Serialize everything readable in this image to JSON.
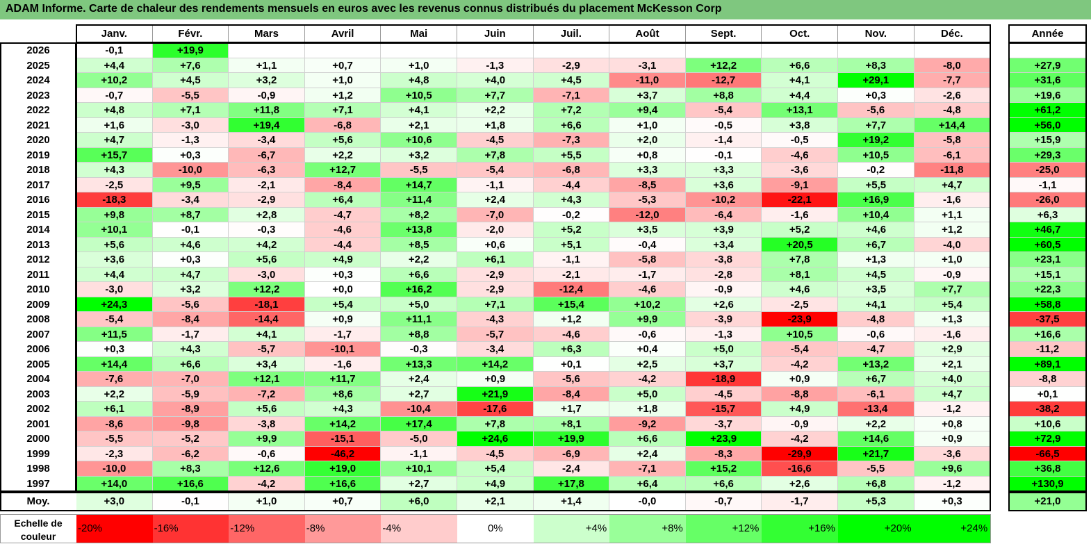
{
  "title": "ADAM Informe. Carte de chaleur des rendements mensuels en euros avec les revenus connus distribués du placement McKesson Corp",
  "chart_data": {
    "type": "heatmap",
    "title": "ADAM Informe. Carte de chaleur des rendements mensuels en euros avec les revenus connus distribués du placement McKesson Corp",
    "months": [
      "Janv.",
      "Févr.",
      "Mars",
      "Avril",
      "Mai",
      "Juin",
      "Juil.",
      "Août",
      "Sept.",
      "Oct.",
      "Nov.",
      "Déc."
    ],
    "year_header": "Année",
    "rows": [
      {
        "year": "2026",
        "months": [
          "-0,1",
          "+19,9",
          "",
          "",
          "",
          "",
          "",
          "",
          "",
          "",
          "",
          ""
        ],
        "annual": ""
      },
      {
        "year": "2025",
        "months": [
          "+4,4",
          "+7,6",
          "+1,1",
          "+0,7",
          "+1,0",
          "-1,3",
          "-2,9",
          "-3,1",
          "+12,2",
          "+6,6",
          "+8,3",
          "-8,0"
        ],
        "annual": "+27,9"
      },
      {
        "year": "2024",
        "months": [
          "+10,2",
          "+4,5",
          "+3,2",
          "+1,0",
          "+4,8",
          "+4,0",
          "+4,5",
          "-11,0",
          "-12,7",
          "+4,1",
          "+29,1",
          "-7,7"
        ],
        "annual": "+31,6"
      },
      {
        "year": "2023",
        "months": [
          "-0,7",
          "-5,5",
          "-0,9",
          "+1,2",
          "+10,5",
          "+7,7",
          "-7,1",
          "+3,7",
          "+8,8",
          "+4,4",
          "+0,3",
          "-2,6"
        ],
        "annual": "+19,6"
      },
      {
        "year": "2022",
        "months": [
          "+4,8",
          "+7,1",
          "+11,8",
          "+7,1",
          "+4,1",
          "+2,2",
          "+7,2",
          "+9,4",
          "-5,4",
          "+13,1",
          "-5,6",
          "-4,8"
        ],
        "annual": "+61,2"
      },
      {
        "year": "2021",
        "months": [
          "+1,6",
          "-3,0",
          "+19,4",
          "-6,8",
          "+2,1",
          "+1,8",
          "+6,6",
          "+1,0",
          "-0,5",
          "+3,8",
          "+7,7",
          "+14,4"
        ],
        "annual": "+56,0"
      },
      {
        "year": "2020",
        "months": [
          "+4,7",
          "-1,3",
          "-3,4",
          "+5,6",
          "+10,6",
          "-4,5",
          "-7,3",
          "+2,0",
          "-1,4",
          "-0,5",
          "+19,2",
          "-5,8"
        ],
        "annual": "+15,9"
      },
      {
        "year": "2019",
        "months": [
          "+15,7",
          "+0,3",
          "-6,7",
          "+2,2",
          "+3,2",
          "+7,8",
          "+5,5",
          "+0,8",
          "-0,1",
          "-4,6",
          "+10,5",
          "-6,1"
        ],
        "annual": "+29,3"
      },
      {
        "year": "2018",
        "months": [
          "+4,3",
          "-10,0",
          "-6,3",
          "+12,7",
          "-5,5",
          "-5,4",
          "-6,8",
          "+3,3",
          "+3,3",
          "-3,6",
          "-0,2",
          "-11,8"
        ],
        "annual": "-25,0"
      },
      {
        "year": "2017",
        "months": [
          "-2,5",
          "+9,5",
          "-2,1",
          "-8,4",
          "+14,7",
          "-1,1",
          "-4,4",
          "-8,5",
          "+3,6",
          "-9,1",
          "+5,5",
          "+4,7"
        ],
        "annual": "-1,1"
      },
      {
        "year": "2016",
        "months": [
          "-18,3",
          "-3,4",
          "-2,9",
          "+6,4",
          "+11,4",
          "+2,4",
          "+4,3",
          "-5,3",
          "-10,2",
          "-22,1",
          "+16,9",
          "-1,6"
        ],
        "annual": "-26,0"
      },
      {
        "year": "2015",
        "months": [
          "+9,8",
          "+8,7",
          "+2,8",
          "-4,7",
          "+8,2",
          "-7,0",
          "-0,2",
          "-12,0",
          "-6,4",
          "-1,6",
          "+10,4",
          "+1,1"
        ],
        "annual": "+6,3"
      },
      {
        "year": "2014",
        "months": [
          "+10,1",
          "-0,1",
          "-0,3",
          "-4,6",
          "+13,8",
          "-2,0",
          "+5,2",
          "+3,5",
          "+3,9",
          "+5,2",
          "+4,6",
          "+1,2"
        ],
        "annual": "+46,7"
      },
      {
        "year": "2013",
        "months": [
          "+5,6",
          "+4,6",
          "+4,2",
          "-4,4",
          "+8,5",
          "+0,6",
          "+5,1",
          "-0,4",
          "+3,4",
          "+20,5",
          "+6,7",
          "-4,0"
        ],
        "annual": "+60,5"
      },
      {
        "year": "2012",
        "months": [
          "+3,6",
          "+0,3",
          "+5,6",
          "+4,9",
          "+2,2",
          "+6,1",
          "-1,1",
          "-5,8",
          "-3,8",
          "+7,8",
          "+1,3",
          "+1,0"
        ],
        "annual": "+23,1"
      },
      {
        "year": "2011",
        "months": [
          "+4,4",
          "+4,7",
          "-3,0",
          "+0,3",
          "+6,6",
          "-2,9",
          "-2,1",
          "-1,7",
          "-2,8",
          "+8,1",
          "+4,5",
          "-0,9"
        ],
        "annual": "+15,1"
      },
      {
        "year": "2010",
        "months": [
          "-3,0",
          "+3,2",
          "+12,2",
          "+0,0",
          "+16,2",
          "-2,9",
          "-12,4",
          "-4,6",
          "-0,9",
          "+4,6",
          "+3,5",
          "+7,7"
        ],
        "annual": "+22,3"
      },
      {
        "year": "2009",
        "months": [
          "+24,3",
          "-5,6",
          "-18,1",
          "+5,4",
          "+5,0",
          "+7,1",
          "+15,4",
          "+10,2",
          "+2,6",
          "-2,5",
          "+4,1",
          "+5,4"
        ],
        "annual": "+58,8"
      },
      {
        "year": "2008",
        "months": [
          "-5,4",
          "-8,4",
          "-14,4",
          "+0,9",
          "+11,1",
          "-4,3",
          "+1,2",
          "+9,9",
          "-3,9",
          "-23,9",
          "-4,8",
          "+1,3"
        ],
        "annual": "-37,5"
      },
      {
        "year": "2007",
        "months": [
          "+11,5",
          "-1,7",
          "+4,1",
          "-1,7",
          "+8,8",
          "-5,7",
          "-4,6",
          "-0,6",
          "-1,3",
          "+10,5",
          "-0,6",
          "-1,6"
        ],
        "annual": "+16,6"
      },
      {
        "year": "2006",
        "months": [
          "+0,3",
          "+4,3",
          "-5,7",
          "-10,1",
          "-0,3",
          "-3,4",
          "+6,3",
          "+0,4",
          "+5,0",
          "-5,4",
          "-4,7",
          "+2,9"
        ],
        "annual": "-11,2"
      },
      {
        "year": "2005",
        "months": [
          "+14,4",
          "+6,6",
          "+3,4",
          "-1,6",
          "+13,3",
          "+14,2",
          "+0,1",
          "+2,5",
          "+3,7",
          "-4,2",
          "+13,2",
          "+2,1"
        ],
        "annual": "+89,1"
      },
      {
        "year": "2004",
        "months": [
          "-7,6",
          "-7,0",
          "+12,1",
          "+11,7",
          "+2,4",
          "+0,9",
          "-5,6",
          "-4,2",
          "-18,9",
          "+0,9",
          "+6,7",
          "+4,0"
        ],
        "annual": "-8,8"
      },
      {
        "year": "2003",
        "months": [
          "+2,2",
          "-5,9",
          "-7,2",
          "+8,6",
          "+2,7",
          "+21,9",
          "-8,4",
          "+5,0",
          "-4,5",
          "-8,8",
          "-6,1",
          "+4,7"
        ],
        "annual": "+0,1"
      },
      {
        "year": "2002",
        "months": [
          "+6,1",
          "-8,9",
          "+5,6",
          "+4,3",
          "-10,4",
          "-17,6",
          "+1,7",
          "+1,8",
          "-15,7",
          "+4,9",
          "-13,4",
          "-1,2"
        ],
        "annual": "-38,2"
      },
      {
        "year": "2001",
        "months": [
          "-8,6",
          "-9,8",
          "-3,8",
          "+14,2",
          "+17,4",
          "+7,8",
          "+8,1",
          "-9,2",
          "-3,7",
          "-0,9",
          "+2,2",
          "+0,8"
        ],
        "annual": "+10,6"
      },
      {
        "year": "2000",
        "months": [
          "-5,5",
          "-5,2",
          "+9,9",
          "-15,1",
          "-5,0",
          "+24,6",
          "+19,9",
          "+6,6",
          "+23,9",
          "-4,2",
          "+14,6",
          "+0,9"
        ],
        "annual": "+72,9"
      },
      {
        "year": "1999",
        "months": [
          "-2,3",
          "-6,2",
          "-0,6",
          "-46,2",
          "-1,1",
          "-4,5",
          "-6,9",
          "+2,4",
          "-8,3",
          "-29,9",
          "+21,7",
          "-3,6"
        ],
        "annual": "-66,5"
      },
      {
        "year": "1998",
        "months": [
          "-10,0",
          "+8,3",
          "+12,6",
          "+19,0",
          "+10,1",
          "+5,4",
          "-2,4",
          "-7,1",
          "+15,2",
          "-16,6",
          "-5,5",
          "+9,6"
        ],
        "annual": "+36,8"
      },
      {
        "year": "1997",
        "months": [
          "+14,0",
          "+16,6",
          "-4,2",
          "+16,6",
          "+2,7",
          "+4,9",
          "+17,8",
          "+6,4",
          "+6,6",
          "+2,6",
          "+6,8",
          "-1,2"
        ],
        "annual": "+130,9"
      }
    ],
    "average": {
      "label": "Moy.",
      "months": [
        "+3,0",
        "-0,1",
        "+1,0",
        "+0,7",
        "+6,0",
        "+2,1",
        "+1,4",
        "-0,0",
        "-0,7",
        "-1,7",
        "+5,3",
        "+0,3"
      ],
      "annual": "+21,0"
    },
    "scale": {
      "label_line1": "Echelle de",
      "label_line2": "couleur",
      "steps": [
        "-20%",
        "-16%",
        "-12%",
        "-8%",
        "-4%",
        "0%",
        "+4%",
        "+8%",
        "+12%",
        "+16%",
        "+20%",
        "+24%"
      ]
    },
    "colors": {
      "negative": "#ff0000",
      "neutral": "#ffffff",
      "positive": "#00ff00",
      "title_bg": "#7fc77f"
    }
  }
}
